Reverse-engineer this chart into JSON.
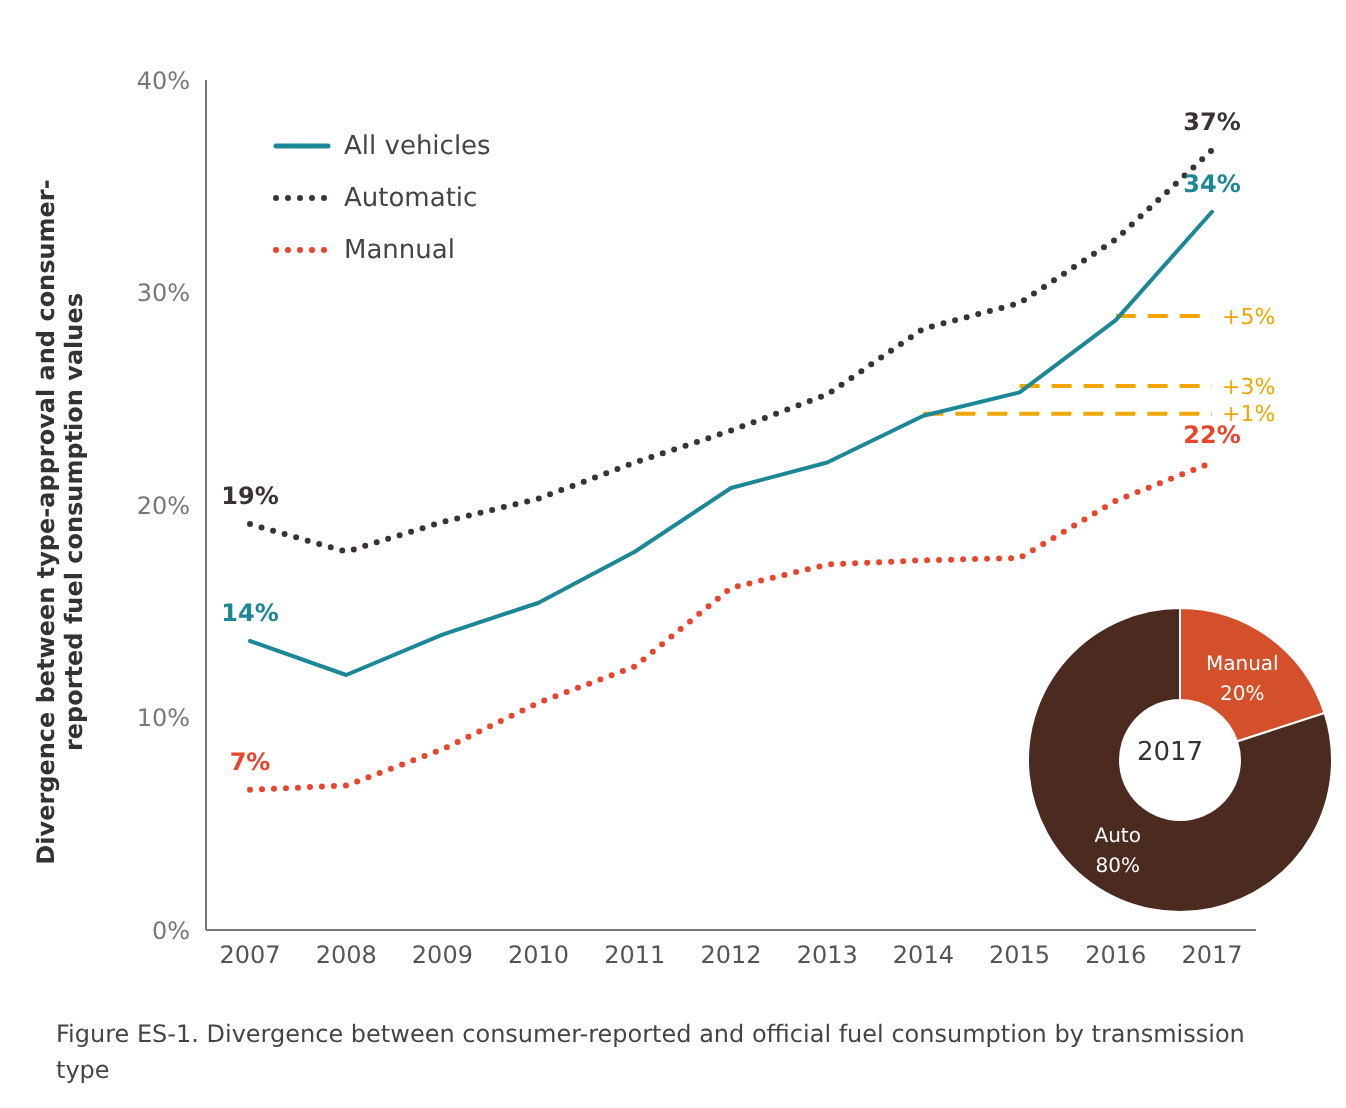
{
  "chart_data": [
    {
      "type": "line",
      "ylabel": "Divergence between type-approval and consumer-reported fuel consumption values",
      "categories": [
        "2007",
        "2008",
        "2009",
        "2010",
        "2011",
        "2012",
        "2013",
        "2014",
        "2015",
        "2016",
        "2017"
      ],
      "series": [
        {
          "name": "All vehicles",
          "color": "#1b8797",
          "line_style": "solid",
          "values": [
            13.6,
            12.0,
            13.9,
            15.4,
            17.8,
            20.8,
            22.0,
            24.2,
            25.3,
            28.7,
            33.8
          ],
          "value_labels": [
            "14%",
            null,
            null,
            null,
            null,
            null,
            null,
            null,
            null,
            null,
            "34%"
          ]
        },
        {
          "name": "Automatic",
          "color": "#3a3333",
          "line_style": "dotted",
          "values": [
            19.1,
            17.8,
            19.2,
            20.3,
            22.0,
            23.5,
            25.2,
            28.3,
            29.5,
            32.5,
            36.7
          ],
          "value_labels": [
            "19%",
            null,
            null,
            null,
            null,
            null,
            null,
            null,
            null,
            null,
            "37%"
          ]
        },
        {
          "name": "Mannual",
          "color": "#e8452c",
          "line_style": "dotted",
          "values": [
            6.6,
            6.8,
            8.5,
            10.7,
            12.4,
            16.1,
            17.2,
            17.4,
            17.5,
            20.2,
            22.0
          ],
          "value_labels": [
            "7%",
            null,
            null,
            null,
            null,
            null,
            null,
            null,
            null,
            null,
            "22%"
          ]
        }
      ],
      "ylim": [
        0,
        40
      ],
      "yticks": [
        {
          "value": 0,
          "label": "0%"
        },
        {
          "value": 10,
          "label": "10%"
        },
        {
          "value": 20,
          "label": "20%"
        },
        {
          "value": 30,
          "label": "30%"
        },
        {
          "value": 40,
          "label": "40%"
        }
      ],
      "grid": false,
      "legend": "top left",
      "marker": "none",
      "annotations": [
        {
          "text": "+5%",
          "x": "2016",
          "y": 28.9
        },
        {
          "text": "+3%",
          "x": "2015",
          "y": 25.6
        },
        {
          "text": "+1%",
          "x": "2014",
          "y": 24.3
        },
        "Figure ES-1. Divergence between consumer-reported and official fuel consumption by transmission type"
      ]
    },
    {
      "type": "donut",
      "title": "2017",
      "categories": [
        "Manual",
        "Auto"
      ],
      "values": [
        20,
        80
      ],
      "colors": [
        "#d4502a",
        "#4b2a1f"
      ],
      "value_labels": [
        "20%",
        "80%"
      ]
    }
  ]
}
